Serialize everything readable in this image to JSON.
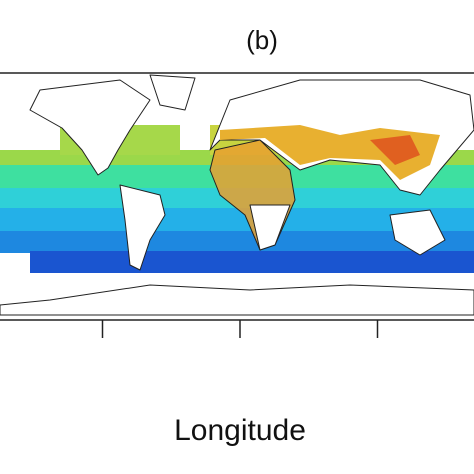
{
  "chart_data": {
    "type": "map",
    "title": "(b)",
    "xlabel": "Longitude",
    "xlim": [
      -180,
      180
    ],
    "xticks": [
      -100,
      0,
      100
    ]
  }
}
